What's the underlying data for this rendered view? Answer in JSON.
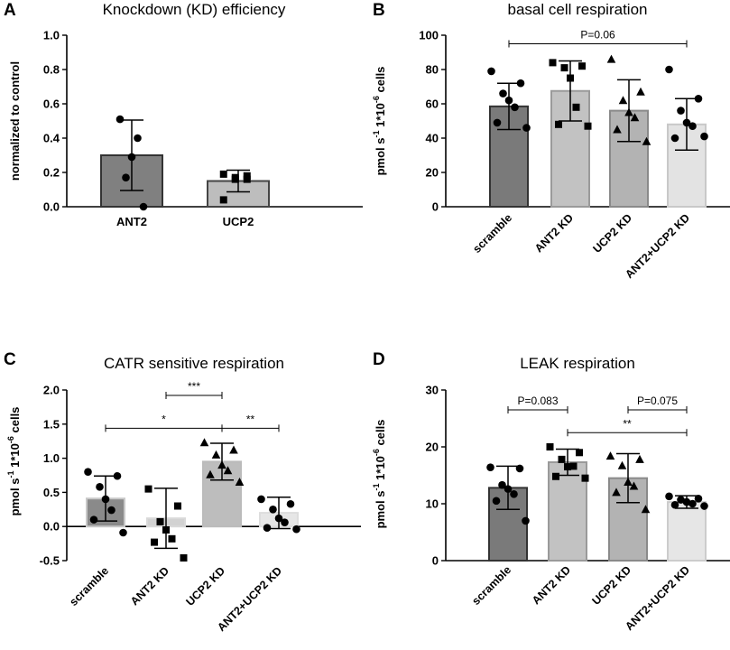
{
  "figure": {
    "background": "#ffffff"
  },
  "chart_data": [
    {
      "id": "A",
      "panel": "A",
      "type": "bar",
      "title": "Knockdown (KD) efficiency",
      "ylabel": "normalized to control",
      "xlabel": "",
      "categories": [
        "ANT2",
        "UCP2"
      ],
      "values": [
        0.3,
        0.15
      ],
      "sd": [
        0.205,
        0.063
      ],
      "ylim": [
        0,
        1.0
      ],
      "yticks": [
        0,
        0.2,
        0.4,
        0.6,
        0.8,
        1.0
      ],
      "ytick_labels": [
        "0.0",
        "0.2",
        "0.4",
        "0.6",
        "0.8",
        "1.0"
      ],
      "fills": [
        "#808080",
        "#bdbdbd"
      ],
      "edges": [
        "#333333",
        "#444444"
      ],
      "markers": [
        "circle",
        "square"
      ],
      "points": [
        [
          0.51,
          0.4,
          0.29,
          0.17,
          0.0
        ],
        [
          0.19,
          0.18,
          0.17,
          0.16,
          0.16,
          0.04
        ]
      ],
      "annotations": []
    },
    {
      "id": "B",
      "panel": "B",
      "type": "bar",
      "title": "basal cell respiration",
      "ylabel": "pmol s^-1 1*10^-6 cells",
      "xlabel": "",
      "categories": [
        "scramble",
        "ANT2 KD",
        "UCP2 KD",
        "ANT2+UCP2 KD"
      ],
      "values": [
        58.5,
        67.5,
        56.0,
        48.0
      ],
      "sd": [
        13.5,
        17.5,
        18.0,
        15.0
      ],
      "ylim": [
        0,
        100
      ],
      "yticks": [
        0,
        20,
        40,
        60,
        80,
        100
      ],
      "ytick_labels": [
        "0",
        "20",
        "40",
        "60",
        "80",
        "100"
      ],
      "fills": [
        "#7a7a7a",
        "#c2c2c2",
        "#b3b3b3",
        "#e3e3e3"
      ],
      "edges": [
        "#333333",
        "#9a9a9a",
        "#8a8a8a",
        "#c8c8c8"
      ],
      "markers": [
        "circle",
        "square",
        "triangle",
        "circle"
      ],
      "points": [
        [
          79,
          72,
          66,
          62,
          58,
          49,
          46
        ],
        [
          84,
          82,
          81,
          75,
          58,
          48,
          47
        ],
        [
          86,
          67,
          62,
          55,
          52,
          45,
          38
        ],
        [
          80,
          63,
          56,
          49,
          47,
          40,
          41
        ]
      ],
      "annotations": [
        {
          "text": "P=0.06",
          "from": 0,
          "to": 3,
          "y": 95
        }
      ]
    },
    {
      "id": "C",
      "panel": "C",
      "type": "bar",
      "title": "CATR sensitive respiration",
      "ylabel": "pmol s^-1 1*10^-6 cells",
      "xlabel": "",
      "categories": [
        "scramble",
        "ANT2 KD",
        "UCP2 KD",
        "ANT2+UCP2 KD"
      ],
      "values": [
        0.41,
        0.12,
        0.95,
        0.2
      ],
      "sd": [
        0.33,
        0.44,
        0.27,
        0.23
      ],
      "ylim": [
        -0.5,
        2.0
      ],
      "yticks": [
        -0.5,
        0.0,
        0.5,
        1.0,
        1.5,
        2.0
      ],
      "ytick_labels": [
        "-0.5",
        "0.0",
        "0.5",
        "1.0",
        "1.5",
        "2.0"
      ],
      "fills": [
        "#8a8a8a",
        "#d2d2d2",
        "#bdbdbd",
        "#e6e6e6"
      ],
      "edges": [
        "#c8c8c8",
        "#d9d9d9",
        "#bbbbbb",
        "#dddddd"
      ],
      "markers": [
        "circle",
        "square",
        "triangle",
        "circle"
      ],
      "points": [
        [
          0.8,
          0.74,
          0.58,
          0.4,
          0.24,
          0.1,
          -0.09
        ],
        [
          0.55,
          0.3,
          0.07,
          -0.05,
          -0.18,
          -0.23,
          -0.46
        ],
        [
          1.23,
          1.12,
          1.05,
          0.9,
          0.82,
          0.76,
          0.65
        ],
        [
          0.4,
          0.33,
          0.25,
          0.12,
          0.06,
          -0.02,
          -0.04
        ]
      ],
      "annotations": [
        {
          "text": "***",
          "from": 1,
          "to": 2,
          "y": 1.92
        },
        {
          "text": "*",
          "from": 0,
          "to": 2,
          "y": 1.44
        },
        {
          "text": "**",
          "from": 2,
          "to": 3,
          "y": 1.44
        }
      ]
    },
    {
      "id": "D",
      "panel": "D",
      "type": "bar",
      "title": "LEAK respiration",
      "ylabel": "pmol s^-1 1*10^-6 cells",
      "xlabel": "",
      "categories": [
        "scramble",
        "ANT2 KD",
        "UCP2 KD",
        "ANT2+UCP2 KD"
      ],
      "values": [
        12.8,
        17.3,
        14.5,
        10.3
      ],
      "sd": [
        3.8,
        2.3,
        4.3,
        1.1
      ],
      "ylim": [
        0,
        30
      ],
      "yticks": [
        0,
        10,
        20,
        30
      ],
      "ytick_labels": [
        "0",
        "10",
        "20",
        "30"
      ],
      "fills": [
        "#7a7a7a",
        "#c2c2c2",
        "#b3b3b3",
        "#e6e6e6"
      ],
      "edges": [
        "#333333",
        "#9a9a9a",
        "#8a8a8a",
        "#cccccc"
      ],
      "markers": [
        "circle",
        "square",
        "triangle",
        "circle"
      ],
      "points": [
        [
          16.4,
          16.2,
          13.3,
          12.6,
          11.7,
          10.5,
          7.0
        ],
        [
          20.0,
          19.0,
          17.8,
          16.5,
          16.6,
          14.8,
          14.5
        ],
        [
          18.4,
          17.8,
          16.7,
          13.8,
          13.1,
          12.0,
          9.0
        ],
        [
          11.3,
          10.9,
          10.7,
          10.3,
          10.0,
          9.8,
          9.6
        ]
      ],
      "annotations": [
        {
          "text": "P=0.083",
          "from": 0,
          "to": 1,
          "y": 26.5
        },
        {
          "text": "P=0.075",
          "from": 2,
          "to": 3,
          "y": 26.5
        },
        {
          "text": "**",
          "from": 1,
          "to": 3,
          "y": 22.5
        }
      ]
    }
  ]
}
